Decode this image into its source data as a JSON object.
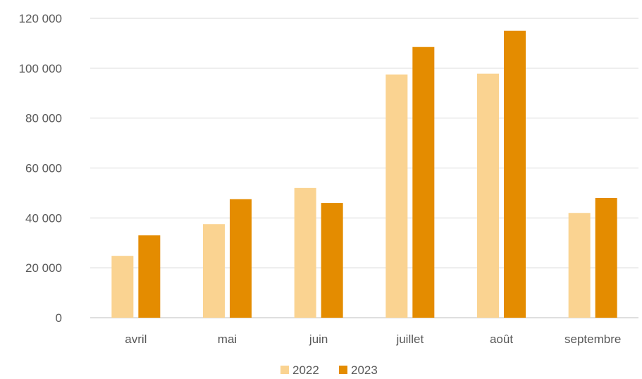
{
  "chart_data": {
    "type": "bar",
    "categories": [
      "avril",
      "mai",
      "juin",
      "juillet",
      "août",
      "septembre"
    ],
    "series": [
      {
        "name": "2022",
        "color": "#FAD391",
        "values": [
          24800,
          37500,
          52000,
          97500,
          97800,
          42000
        ]
      },
      {
        "name": "2023",
        "color": "#E48C00",
        "values": [
          33000,
          47500,
          46000,
          108500,
          115000,
          48000
        ]
      }
    ],
    "ylim": [
      0,
      120000
    ],
    "yticks": [
      0,
      20000,
      40000,
      60000,
      80000,
      100000,
      120000
    ],
    "ytick_labels": [
      "0",
      "20 000",
      "40 000",
      "60 000",
      "80 000",
      "100 000",
      "120 000"
    ],
    "grid": true,
    "legend_position": "bottom",
    "title": "",
    "xlabel": "",
    "ylabel": ""
  }
}
